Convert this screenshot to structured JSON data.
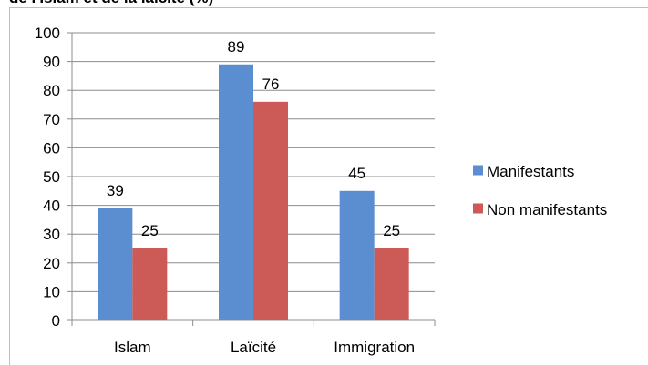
{
  "chart_data": {
    "type": "bar",
    "title": "de l'Islam et de la laïcité (%)",
    "categories": [
      "Islam",
      "Laïcité",
      "Immigration"
    ],
    "series": [
      {
        "name": "Manifestants",
        "values": [
          39,
          89,
          45
        ],
        "color": "#5b8ed0"
      },
      {
        "name": "Non manifestants",
        "values": [
          25,
          76,
          25
        ],
        "color": "#cc5a57"
      }
    ],
    "ylim": [
      0,
      100
    ],
    "yticks": [
      0,
      10,
      20,
      30,
      40,
      50,
      60,
      70,
      80,
      90,
      100
    ],
    "grid": true,
    "legend_position": "right"
  }
}
